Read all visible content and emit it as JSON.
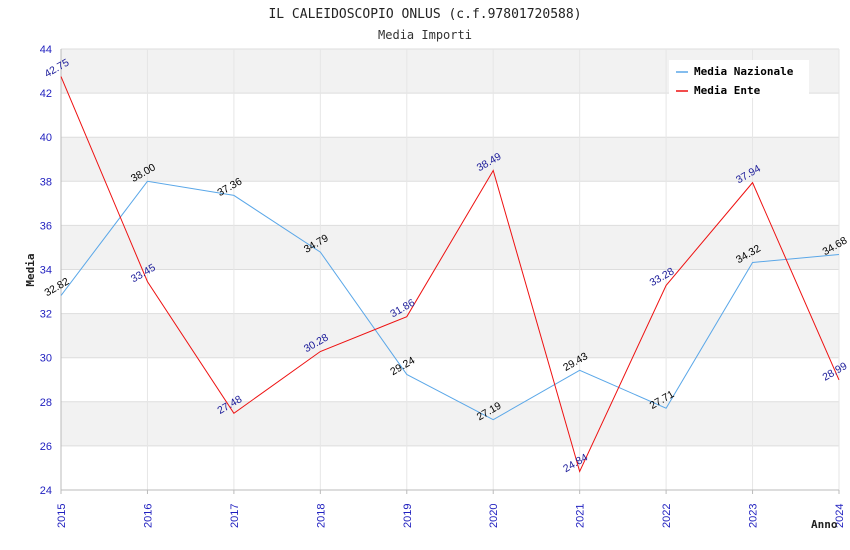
{
  "chart_data": {
    "type": "line",
    "title": "IL CALEIDOSCOPIO ONLUS (c.f.97801720588)",
    "subtitle": "Media Importi",
    "xlabel": "Anno",
    "ylabel": "Media",
    "categories": [
      "2015",
      "2016",
      "2017",
      "2018",
      "2019",
      "2020",
      "2021",
      "2022",
      "2023",
      "2024"
    ],
    "ylim": [
      24,
      44
    ],
    "yticks": [
      24,
      26,
      28,
      30,
      32,
      34,
      36,
      38,
      40,
      42,
      44
    ],
    "legend_position": "top-right",
    "series": [
      {
        "name": "Media Nazionale",
        "color": "#5aa7e8",
        "label_color": "#000000",
        "values": [
          32.82,
          38.0,
          37.36,
          34.79,
          29.24,
          27.19,
          29.43,
          27.71,
          34.32,
          34.68
        ],
        "labels": [
          "32.82",
          "38.00",
          "37.36",
          "34.79",
          "29.24",
          "27.19",
          "29.43",
          "27.71",
          "34.32",
          "34.68"
        ]
      },
      {
        "name": "Media Ente",
        "color": "#ee1111",
        "label_color": "#1a1a99",
        "values": [
          42.75,
          33.45,
          27.48,
          30.28,
          31.86,
          38.49,
          24.84,
          33.28,
          37.94,
          28.99
        ],
        "labels": [
          "42.75",
          "33.45",
          "27.48",
          "30.28",
          "31.86",
          "38.49",
          "24.84",
          "33.28",
          "37.94",
          "28.99"
        ]
      }
    ]
  }
}
